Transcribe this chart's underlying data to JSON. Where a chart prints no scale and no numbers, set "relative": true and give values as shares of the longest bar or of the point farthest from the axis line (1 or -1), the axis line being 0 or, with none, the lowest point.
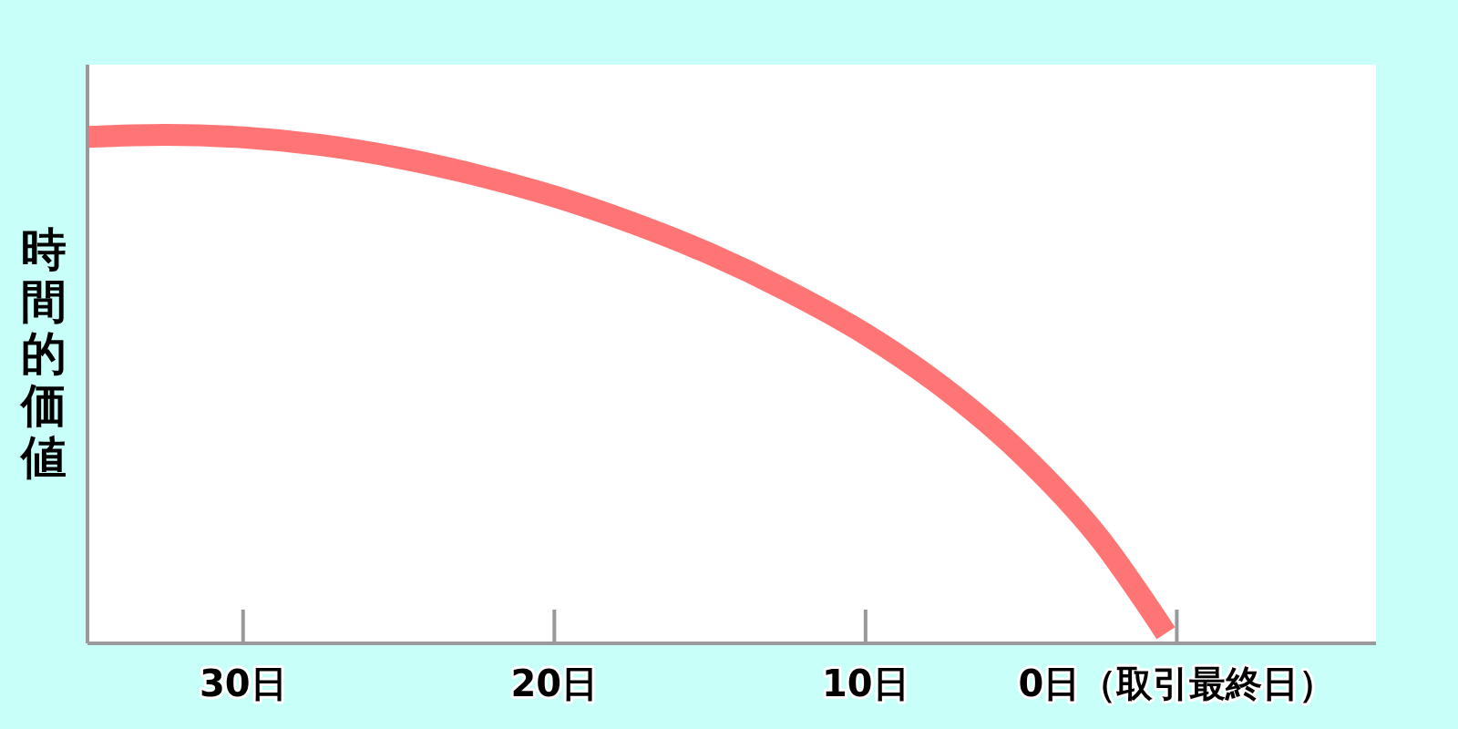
{
  "chart_data": {
    "type": "line",
    "ylabel": "時間的価値",
    "relative": true,
    "x": [
      35,
      32.5,
      30,
      27.5,
      25,
      22.5,
      20,
      17.5,
      15,
      12.5,
      10,
      7.5,
      5,
      2.5,
      0.35
    ],
    "values": [
      0.996,
      1,
      0.995,
      0.98,
      0.955,
      0.921,
      0.879,
      0.827,
      0.766,
      0.693,
      0.608,
      0.503,
      0.373,
      0.208,
      0.02
    ],
    "color": "#ff7474",
    "xlim": [
      35,
      -6.4
    ],
    "xticks": [
      {
        "value": 30,
        "label": "30日"
      },
      {
        "value": 20,
        "label": "20日"
      },
      {
        "value": 10,
        "label": "10日"
      },
      {
        "value": 0,
        "label": "0日（取引最終日）"
      }
    ]
  }
}
